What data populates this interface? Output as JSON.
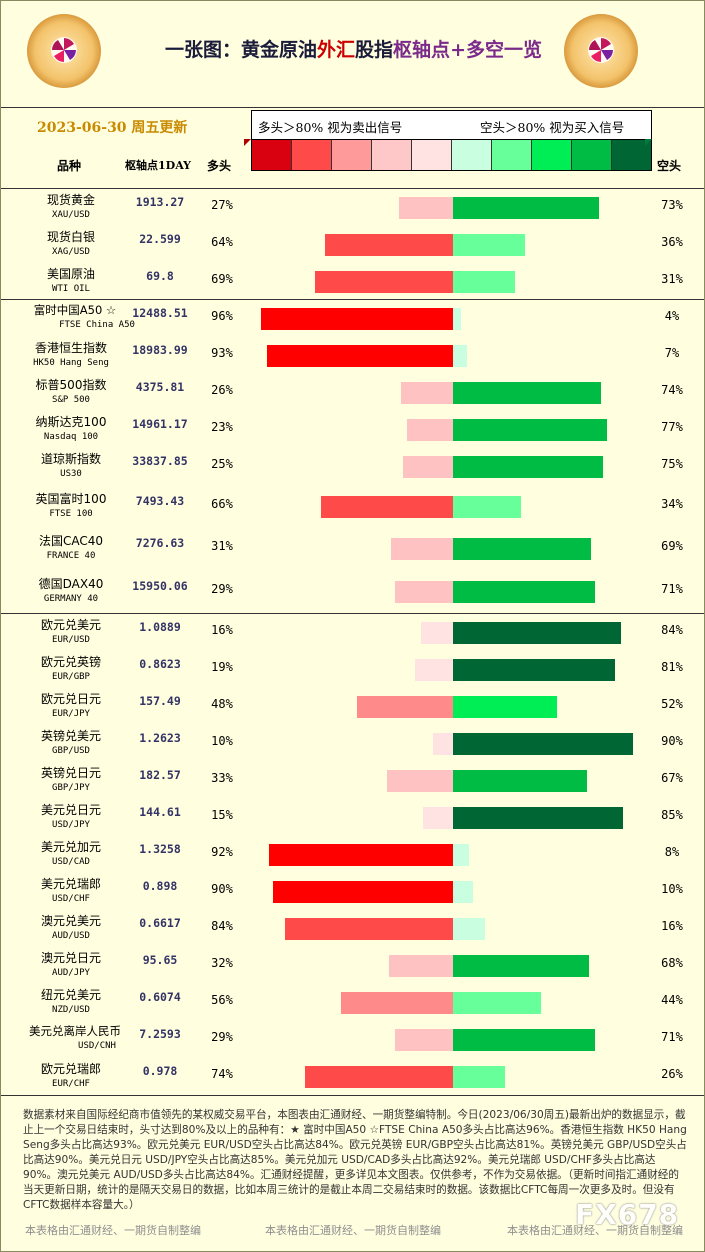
{
  "header": {
    "title_part1": "一张图：黄金原油",
    "title_part2": "外汇",
    "title_part3": "股指",
    "title_part4": "枢轴点",
    "title_part5": "+多空一览",
    "date": "2023-06-30 周五更新"
  },
  "legend": {
    "left_text": "多头＞80% 视为卖出信号",
    "right_text": "空头＞80% 视为买入信号",
    "swatches": [
      "#d9000f",
      "#ff4a4a",
      "#ff9a9a",
      "#ffc8c8",
      "#ffe3e3",
      "#c9ffe0",
      "#66ff99",
      "#00ee55",
      "#00bb44",
      "#006633"
    ]
  },
  "columns": {
    "product": "品种",
    "pivot": "枢轴点1DAY",
    "long": "多头",
    "short": "空头"
  },
  "chart_data": {
    "type": "bar",
    "title": "一张图：黄金原油外汇股指枢轴点+多空一览",
    "rows": [
      {
        "name": "现货黄金",
        "code": "XAU/USD",
        "pivot": "1913.27",
        "long": 27,
        "short": 73,
        "long_label": "27%",
        "short_label": "73%"
      },
      {
        "name": "现货白银",
        "code": "XAG/USD",
        "pivot": "22.599",
        "long": 64,
        "short": 36,
        "long_label": "64%",
        "short_label": "36%"
      },
      {
        "name": "美国原油",
        "code": "WTI OIL",
        "pivot": "69.8",
        "long": 69,
        "short": 31,
        "long_label": "69%",
        "short_label": "31%"
      },
      {
        "name": "富时中国A50 ☆",
        "code": "FTSE China A50",
        "pivot": "12488.51",
        "long": 96,
        "short": 4,
        "long_label": "96%",
        "short_label": "4%"
      },
      {
        "name": "香港恒生指数",
        "code": "HK50 Hang Seng",
        "pivot": "18983.99",
        "long": 93,
        "short": 7,
        "long_label": "93%",
        "short_label": "7%"
      },
      {
        "name": "标普500指数",
        "code": "S&P 500",
        "pivot": "4375.81",
        "long": 26,
        "short": 74,
        "long_label": "26%",
        "short_label": "74%"
      },
      {
        "name": "纳斯达克100",
        "code": "Nasdaq 100",
        "pivot": "14961.17",
        "long": 23,
        "short": 77,
        "long_label": "23%",
        "short_label": "77%"
      },
      {
        "name": "道琼斯指数",
        "code": "US30",
        "pivot": "33837.85",
        "long": 25,
        "short": 75,
        "long_label": "25%",
        "short_label": "75%"
      },
      {
        "name": "英国富时100",
        "code": "FTSE 100",
        "pivot": "7493.43",
        "long": 66,
        "short": 34,
        "long_label": "66%",
        "short_label": "34%"
      },
      {
        "name": "法国CAC40",
        "code": "FRANCE 40",
        "pivot": "7276.63",
        "long": 31,
        "short": 69,
        "long_label": "31%",
        "short_label": "69%"
      },
      {
        "name": "德国DAX40",
        "code": "GERMANY 40",
        "pivot": "15950.06",
        "long": 29,
        "short": 71,
        "long_label": "29%",
        "short_label": "71%"
      },
      {
        "name": "欧元兑美元",
        "code": "EUR/USD",
        "pivot": "1.0889",
        "long": 16,
        "short": 84,
        "long_label": "16%",
        "short_label": "84%"
      },
      {
        "name": "欧元兑英镑",
        "code": "EUR/GBP",
        "pivot": "0.8623",
        "long": 19,
        "short": 81,
        "long_label": "19%",
        "short_label": "81%"
      },
      {
        "name": "欧元兑日元",
        "code": "EUR/JPY",
        "pivot": "157.49",
        "long": 48,
        "short": 52,
        "long_label": "48%",
        "short_label": "52%"
      },
      {
        "name": "英镑兑美元",
        "code": "GBP/USD",
        "pivot": "1.2623",
        "long": 10,
        "short": 90,
        "long_label": "10%",
        "short_label": "90%"
      },
      {
        "name": "英镑兑日元",
        "code": "GBP/JPY",
        "pivot": "182.57",
        "long": 33,
        "short": 67,
        "long_label": "33%",
        "short_label": "67%"
      },
      {
        "name": "美元兑日元",
        "code": "USD/JPY",
        "pivot": "144.61",
        "long": 15,
        "short": 85,
        "long_label": "15%",
        "short_label": "85%"
      },
      {
        "name": "美元兑加元",
        "code": "USD/CAD",
        "pivot": "1.3258",
        "long": 92,
        "short": 8,
        "long_label": "92%",
        "short_label": "8%"
      },
      {
        "name": "美元兑瑞郎",
        "code": "USD/CHF",
        "pivot": "0.898",
        "long": 90,
        "short": 10,
        "long_label": "90%",
        "short_label": "10%"
      },
      {
        "name": "澳元兑美元",
        "code": "AUD/USD",
        "pivot": "0.6617",
        "long": 84,
        "short": 16,
        "long_label": "84%",
        "short_label": "16%"
      },
      {
        "name": "澳元兑日元",
        "code": "AUD/JPY",
        "pivot": "95.65",
        "long": 32,
        "short": 68,
        "long_label": "32%",
        "short_label": "68%"
      },
      {
        "name": "纽元兑美元",
        "code": "NZD/USD",
        "pivot": "0.6074",
        "long": 56,
        "short": 44,
        "long_label": "56%",
        "short_label": "44%"
      },
      {
        "name": "美元兑离岸人民币",
        "code": "USD/CNH",
        "pivot": "7.2593",
        "long": 29,
        "short": 71,
        "long_label": "29%",
        "short_label": "71%"
      },
      {
        "name": "欧元兑瑞郎",
        "code": "EUR/CHF",
        "pivot": "0.978",
        "long": 74,
        "short": 26,
        "long_label": "74%",
        "short_label": "26%"
      }
    ]
  },
  "footer": {
    "text": "数据素材来自国际经纪商市值领先的某权威交易平台，本图表由汇通财经、一期货整编特制。今日(2023/06/30周五)最新出炉的数据显示，截止上一个交易日结束时，头寸达到80%及以上的品种有：★ 富时中国A50 ☆FTSE China A50多头占比高达96%。香港恒生指数 HK50 Hang Seng多头占比高达93%。欧元兑美元 EUR/USD空头占比高达84%。欧元兑英镑 EUR/GBP空头占比高达81%。英镑兑美元 GBP/USD空头占比高达90%。美元兑日元 USD/JPY空头占比高达85%。美元兑加元 USD/CAD多头占比高达92%。美元兑瑞郎 USD/CHF多头占比高达90%。澳元兑美元 AUD/USD多头占比高达84%。汇通财经提醒，更多详见本文图表。仅供参考，不作为交易依据。（更新时间指汇通财经的当天更新日期，统计的是隔天交易日的数据，比如本周三统计的是截止本周二交易结束时的数据。该数据比CFTC每周一次更多及时。但没有CFTC数据样本容量大。）",
    "source1": "本表格由汇通财经、一期货自制整编",
    "source2": "本表格由汇通财经、一期货自制整编",
    "source3": "本表格由汇通财经、一期货自制整编",
    "watermark": "FX678"
  }
}
